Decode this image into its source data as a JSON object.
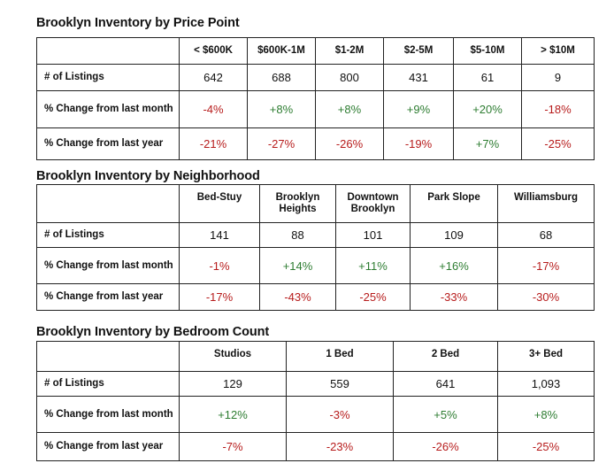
{
  "tables": [
    {
      "title": "Brooklyn Inventory by Price Point",
      "columns": [
        "< $600K",
        "$600K-1M",
        "$1-2M",
        "$2-5M",
        "$5-10M",
        "> $10M"
      ],
      "rows": [
        {
          "label": "# of Listings",
          "values": [
            "642",
            "688",
            "800",
            "431",
            "61",
            "9"
          ],
          "tones": [
            "neu",
            "neu",
            "neu",
            "neu",
            "neu",
            "neu"
          ]
        },
        {
          "label": "% Change from last month",
          "values": [
            "-4%",
            "+8%",
            "+8%",
            "+9%",
            "+20%",
            "-18%"
          ],
          "tones": [
            "neg",
            "pos",
            "pos",
            "pos",
            "pos",
            "neg"
          ]
        },
        {
          "label": "% Change from last year",
          "values": [
            "-21%",
            "-27%",
            "-26%",
            "-19%",
            "+7%",
            "-25%"
          ],
          "tones": [
            "neg",
            "neg",
            "neg",
            "neg",
            "pos",
            "neg"
          ]
        }
      ]
    },
    {
      "title": "Brooklyn Inventory by Neighborhood",
      "columns": [
        "Bed-Stuy",
        "Brooklyn Heights",
        "Downtown Brooklyn",
        "Park Slope",
        "Williamsburg"
      ],
      "rows": [
        {
          "label": "# of Listings",
          "values": [
            "141",
            "88",
            "101",
            "109",
            "68"
          ],
          "tones": [
            "neu",
            "neu",
            "neu",
            "neu",
            "neu"
          ]
        },
        {
          "label": "% Change from last month",
          "values": [
            "-1%",
            "+14%",
            "+11%",
            "+16%",
            "-17%"
          ],
          "tones": [
            "neg",
            "pos",
            "pos",
            "pos",
            "neg"
          ]
        },
        {
          "label": "% Change from last year",
          "values": [
            "-17%",
            "-43%",
            "-25%",
            "-33%",
            "-30%"
          ],
          "tones": [
            "neg",
            "neg",
            "neg",
            "neg",
            "neg"
          ]
        }
      ]
    },
    {
      "title": "Brooklyn Inventory by Bedroom Count",
      "columns": [
        "Studios",
        "1 Bed",
        "2 Bed",
        "3+ Bed"
      ],
      "rows": [
        {
          "label": "# of Listings",
          "values": [
            "129",
            "559",
            "641",
            "1,093"
          ],
          "tones": [
            "neu",
            "neu",
            "neu",
            "neu"
          ]
        },
        {
          "label": "% Change from last month",
          "values": [
            "+12%",
            "-3%",
            "+5%",
            "+8%"
          ],
          "tones": [
            "pos",
            "neg",
            "pos",
            "pos"
          ]
        },
        {
          "label": "% Change from last year",
          "values": [
            "-7%",
            "-23%",
            "-26%",
            "-25%"
          ],
          "tones": [
            "neg",
            "neg",
            "neg",
            "neg"
          ]
        }
      ]
    }
  ],
  "colors": {
    "positive": "#2e7d32",
    "negative": "#b71c1c",
    "neutral": "#111111"
  }
}
